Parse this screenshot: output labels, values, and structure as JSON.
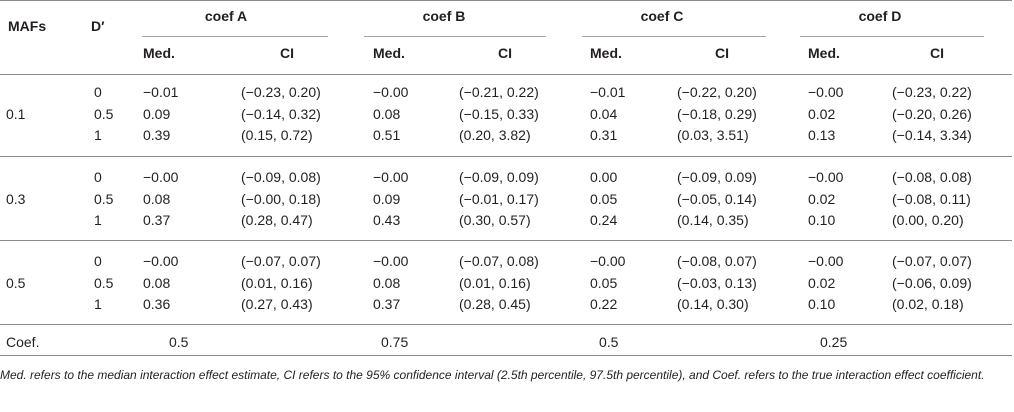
{
  "header": {
    "mafs": "MAFs",
    "dprime": "D′",
    "groups": [
      "coef A",
      "coef B",
      "coef C",
      "coef D"
    ],
    "med": "Med.",
    "ci": "CI"
  },
  "blocks": [
    {
      "maf": "0.1",
      "rows": [
        {
          "d": "0",
          "cells": [
            [
              "−0.01",
              "(−0.23, 0.20)"
            ],
            [
              "−0.00",
              "(−0.21, 0.22)"
            ],
            [
              "−0.01",
              "(−0.22, 0.20)"
            ],
            [
              "−0.00",
              "(−0.23, 0.22)"
            ]
          ]
        },
        {
          "d": "0.5",
          "cells": [
            [
              "0.09",
              "(−0.14, 0.32)"
            ],
            [
              "0.08",
              "(−0.15, 0.33)"
            ],
            [
              "0.04",
              "(−0.18, 0.29)"
            ],
            [
              "0.02",
              "(−0.20, 0.26)"
            ]
          ]
        },
        {
          "d": "1",
          "cells": [
            [
              "0.39",
              "(0.15, 0.72)"
            ],
            [
              "0.51",
              "(0.20, 3.82)"
            ],
            [
              "0.31",
              "(0.03, 3.51)"
            ],
            [
              "0.13",
              "(−0.14, 3.34)"
            ]
          ]
        }
      ]
    },
    {
      "maf": "0.3",
      "rows": [
        {
          "d": "0",
          "cells": [
            [
              "−0.00",
              "(−0.09, 0.08)"
            ],
            [
              "−0.00",
              "(−0.09, 0.09)"
            ],
            [
              "0.00",
              "(−0.09, 0.09)"
            ],
            [
              "−0.00",
              "(−0.08, 0.08)"
            ]
          ]
        },
        {
          "d": "0.5",
          "cells": [
            [
              "0.08",
              "(−0.00, 0.18)"
            ],
            [
              "0.09",
              "(−0.01, 0.17)"
            ],
            [
              "0.05",
              "(−0.05, 0.14)"
            ],
            [
              "0.02",
              "(−0.08, 0.11)"
            ]
          ]
        },
        {
          "d": "1",
          "cells": [
            [
              "0.37",
              "(0.28, 0.47)"
            ],
            [
              "0.43",
              "(0.30, 0.57)"
            ],
            [
              "0.24",
              "(0.14, 0.35)"
            ],
            [
              "0.10",
              "(0.00, 0.20)"
            ]
          ]
        }
      ]
    },
    {
      "maf": "0.5",
      "rows": [
        {
          "d": "0",
          "cells": [
            [
              "−0.00",
              "(−0.07, 0.07)"
            ],
            [
              "−0.00",
              "(−0.07, 0.08)"
            ],
            [
              "−0.00",
              "(−0.08, 0.07)"
            ],
            [
              "−0.00",
              "(−0.07, 0.07)"
            ]
          ]
        },
        {
          "d": "0.5",
          "cells": [
            [
              "0.08",
              "(0.01, 0.16)"
            ],
            [
              "0.08",
              "(0.01, 0.16)"
            ],
            [
              "0.05",
              "(−0.03, 0.13)"
            ],
            [
              "0.02",
              "(−0.06, 0.09)"
            ]
          ]
        },
        {
          "d": "1",
          "cells": [
            [
              "0.36",
              "(0.27, 0.43)"
            ],
            [
              "0.37",
              "(0.28, 0.45)"
            ],
            [
              "0.22",
              "(0.14, 0.30)"
            ],
            [
              "0.10",
              "(0.02, 0.18)"
            ]
          ]
        }
      ]
    }
  ],
  "coef_row": {
    "label": "Coef.",
    "values": [
      "0.5",
      "0.75",
      "0.5",
      "0.25"
    ]
  },
  "footnote": "Med. refers to the median interaction effect estimate, CI refers to the 95% confidence interval (2.5th percentile, 97.5th percentile), and Coef. refers to the true interaction effect coefficient."
}
